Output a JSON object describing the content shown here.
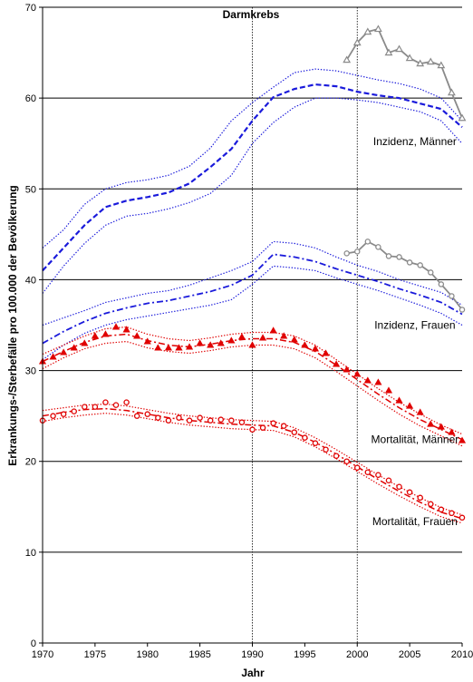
{
  "chart_data": {
    "type": "line",
    "title": "Darmkrebs",
    "xlabel": "Jahr",
    "ylabel": "Erkrankungs-/Sterbefälle pro 100.000 der Bevölkerung",
    "xlim": [
      1970,
      2010
    ],
    "ylim": [
      0,
      70
    ],
    "x_ticks": [
      1970,
      1975,
      1980,
      1985,
      1990,
      1995,
      2000,
      2005,
      2010
    ],
    "y_ticks": [
      0,
      10,
      20,
      30,
      40,
      50,
      60,
      70
    ],
    "grid": "horizontal",
    "vlines": [
      1990,
      2000
    ],
    "colors": {
      "blue": "#1a1adb",
      "red": "#e00000",
      "gray": "#8a8a8a"
    },
    "annotations": [
      {
        "text": "Inzidenz, Männer",
        "x": 2005.5,
        "y": 54.8
      },
      {
        "text": "Inzidenz, Frauen",
        "x": 2005.5,
        "y": 34.6
      },
      {
        "text": "Mortalität, Männer",
        "x": 2005.5,
        "y": 22.0
      },
      {
        "text": "Mortalität, Frauen",
        "x": 2005.5,
        "y": 13.0
      }
    ],
    "series": [
      {
        "id": "inz-m-band-upper",
        "color": "blue",
        "style": "dotted",
        "width": 1.2,
        "x": [
          1970,
          1972,
          1974,
          1976,
          1978,
          1980,
          1982,
          1984,
          1986,
          1988,
          1990,
          1992,
          1994,
          1996,
          1998,
          2000,
          2002,
          2004,
          2006,
          2008,
          2010
        ],
        "y": [
          43.5,
          45.5,
          48.3,
          50.0,
          50.7,
          51.0,
          51.5,
          52.5,
          54.5,
          57.5,
          59.5,
          61.2,
          62.8,
          63.2,
          63.0,
          62.5,
          62.0,
          61.6,
          61.0,
          60.0,
          57.5
        ]
      },
      {
        "id": "inz-m-modell",
        "color": "blue",
        "style": "dashed",
        "width": 2.2,
        "x": [
          1970,
          1972,
          1974,
          1976,
          1978,
          1980,
          1982,
          1984,
          1986,
          1988,
          1990,
          1992,
          1994,
          1996,
          1998,
          2000,
          2002,
          2004,
          2006,
          2008,
          2010
        ],
        "y": [
          41.0,
          43.5,
          46.0,
          48.0,
          48.7,
          49.1,
          49.6,
          50.6,
          52.4,
          54.4,
          57.5,
          60.1,
          61.0,
          61.5,
          61.3,
          60.7,
          60.3,
          60.0,
          59.4,
          58.8,
          56.8
        ]
      },
      {
        "id": "inz-m-band-lower",
        "color": "blue",
        "style": "dotted",
        "width": 1.2,
        "x": [
          1970,
          1972,
          1974,
          1976,
          1978,
          1980,
          1982,
          1984,
          1986,
          1988,
          1990,
          1992,
          1994,
          1996,
          1998,
          2000,
          2002,
          2004,
          2006,
          2008,
          2010
        ],
        "y": [
          38.5,
          41.5,
          44.0,
          46.0,
          47.0,
          47.3,
          47.8,
          48.5,
          49.5,
          51.5,
          55.0,
          57.3,
          59.0,
          60.0,
          60.0,
          59.8,
          59.5,
          59.0,
          58.5,
          57.5,
          55.0
        ]
      },
      {
        "id": "inz-m-beobachtet",
        "color": "gray",
        "style": "solid",
        "width": 1.8,
        "marker": "triangle-open",
        "x": [
          1999,
          2000,
          2001,
          2002,
          2003,
          2004,
          2005,
          2006,
          2007,
          2008,
          2009,
          2010
        ],
        "y": [
          64.2,
          66.1,
          67.3,
          67.6,
          65.0,
          65.4,
          64.4,
          63.8,
          64.0,
          63.6,
          60.6,
          57.8
        ]
      },
      {
        "id": "inz-f-band-upper",
        "color": "blue",
        "style": "dotted",
        "width": 1.2,
        "x": [
          1970,
          1972,
          1974,
          1976,
          1978,
          1980,
          1982,
          1984,
          1986,
          1988,
          1990,
          1992,
          1994,
          1996,
          1998,
          2000,
          2002,
          2004,
          2006,
          2008,
          2010
        ],
        "y": [
          35.0,
          35.8,
          36.6,
          37.5,
          38.0,
          38.5,
          38.8,
          39.4,
          40.2,
          41.0,
          42.0,
          44.2,
          44.0,
          43.5,
          42.5,
          41.6,
          40.9,
          40.0,
          39.3,
          38.6,
          37.2
        ]
      },
      {
        "id": "inz-f-modell",
        "color": "blue",
        "style": "dashdot",
        "width": 1.8,
        "x": [
          1970,
          1972,
          1974,
          1976,
          1978,
          1980,
          1982,
          1984,
          1986,
          1988,
          1990,
          1992,
          1994,
          1996,
          1998,
          2000,
          2002,
          2004,
          2006,
          2008,
          2010
        ],
        "y": [
          33.0,
          34.3,
          35.4,
          36.3,
          36.9,
          37.4,
          37.7,
          38.2,
          38.7,
          39.4,
          40.5,
          42.8,
          42.5,
          42.0,
          41.2,
          40.5,
          39.8,
          39.0,
          38.3,
          37.5,
          36.2
        ]
      },
      {
        "id": "inz-f-band-lower",
        "color": "blue",
        "style": "dotted",
        "width": 1.2,
        "x": [
          1970,
          1972,
          1974,
          1976,
          1978,
          1980,
          1982,
          1984,
          1986,
          1988,
          1990,
          1992,
          1994,
          1996,
          1998,
          2000,
          2002,
          2004,
          2006,
          2008,
          2010
        ],
        "y": [
          31.2,
          32.8,
          34.1,
          35.0,
          35.6,
          36.0,
          36.4,
          36.8,
          37.2,
          37.8,
          39.5,
          41.5,
          41.3,
          41.0,
          40.2,
          39.5,
          38.8,
          38.0,
          37.2,
          36.3,
          35.0
        ]
      },
      {
        "id": "inz-f-beobachtet",
        "color": "gray",
        "style": "solid",
        "width": 1.8,
        "marker": "circle-open",
        "x": [
          1999,
          2000,
          2001,
          2002,
          2003,
          2004,
          2005,
          2006,
          2007,
          2008,
          2009,
          2010
        ],
        "y": [
          42.9,
          43.1,
          44.2,
          43.6,
          42.6,
          42.5,
          41.9,
          41.6,
          40.8,
          39.5,
          38.2,
          36.7
        ]
      },
      {
        "id": "mort-m-band-upper",
        "color": "red",
        "style": "dotted",
        "width": 1.2,
        "x": [
          1970,
          1972,
          1974,
          1976,
          1978,
          1980,
          1982,
          1984,
          1986,
          1988,
          1990,
          1992,
          1994,
          1996,
          1998,
          2000,
          2002,
          2004,
          2006,
          2008,
          2010
        ],
        "y": [
          31.8,
          32.8,
          33.8,
          34.6,
          34.8,
          34.0,
          33.5,
          33.3,
          33.6,
          34.0,
          34.2,
          34.2,
          33.8,
          32.8,
          31.2,
          29.6,
          28.0,
          26.5,
          25.2,
          24.0,
          23.0
        ]
      },
      {
        "id": "mort-m-modell",
        "color": "red",
        "style": "dashdot",
        "width": 1.5,
        "x": [
          1970,
          1972,
          1974,
          1976,
          1978,
          1980,
          1982,
          1984,
          1986,
          1988,
          1990,
          1992,
          1994,
          1996,
          1998,
          2000,
          2002,
          2004,
          2006,
          2008,
          2010
        ],
        "y": [
          31.0,
          32.1,
          33.1,
          33.8,
          34.0,
          33.3,
          32.8,
          32.6,
          32.9,
          33.3,
          33.5,
          33.5,
          33.1,
          32.1,
          30.6,
          29.0,
          27.4,
          25.9,
          24.6,
          23.5,
          22.4
        ]
      },
      {
        "id": "mort-m-band-lower",
        "color": "red",
        "style": "dotted",
        "width": 1.2,
        "x": [
          1970,
          1972,
          1974,
          1976,
          1978,
          1980,
          1982,
          1984,
          1986,
          1988,
          1990,
          1992,
          1994,
          1996,
          1998,
          2000,
          2002,
          2004,
          2006,
          2008,
          2010
        ],
        "y": [
          30.2,
          31.4,
          32.4,
          33.0,
          33.2,
          32.5,
          32.1,
          31.9,
          32.2,
          32.6,
          32.8,
          32.8,
          32.4,
          31.4,
          29.9,
          28.3,
          26.7,
          25.2,
          23.9,
          22.8,
          21.7
        ]
      },
      {
        "id": "mort-m-beobachtet",
        "color": "red",
        "style": "none",
        "marker": "triangle-filled",
        "x": [
          1970,
          1971,
          1972,
          1973,
          1974,
          1975,
          1976,
          1977,
          1978,
          1979,
          1980,
          1981,
          1982,
          1983,
          1984,
          1985,
          1986,
          1987,
          1988,
          1989,
          1990,
          1991,
          1992,
          1993,
          1994,
          1995,
          1996,
          1997,
          1998,
          1999,
          2000,
          2001,
          2002,
          2003,
          2004,
          2005,
          2006,
          2007,
          2008,
          2009,
          2010
        ],
        "y": [
          31.0,
          31.5,
          32.0,
          32.5,
          33.0,
          33.8,
          34.0,
          34.8,
          34.5,
          33.8,
          33.2,
          32.5,
          32.5,
          32.5,
          32.6,
          33.0,
          32.8,
          33.0,
          33.3,
          33.7,
          32.8,
          33.6,
          34.4,
          33.8,
          33.4,
          32.8,
          32.4,
          31.9,
          30.7,
          30.1,
          29.6,
          28.9,
          28.7,
          27.8,
          26.7,
          26.1,
          25.4,
          24.1,
          23.8,
          23.2,
          22.3
        ]
      },
      {
        "id": "mort-f-band-upper",
        "color": "red",
        "style": "dotted",
        "width": 1.2,
        "x": [
          1970,
          1972,
          1974,
          1976,
          1978,
          1980,
          1982,
          1984,
          1986,
          1988,
          1990,
          1992,
          1994,
          1996,
          1998,
          2000,
          2002,
          2004,
          2006,
          2008,
          2010
        ],
        "y": [
          25.6,
          25.9,
          26.2,
          26.3,
          26.1,
          25.7,
          25.3,
          25.0,
          24.8,
          24.6,
          24.5,
          24.4,
          23.7,
          22.6,
          21.3,
          19.9,
          18.5,
          17.2,
          16.0,
          14.9,
          14.1
        ]
      },
      {
        "id": "mort-f-modell",
        "color": "red",
        "style": "dashdot",
        "width": 1.5,
        "x": [
          1970,
          1972,
          1974,
          1976,
          1978,
          1980,
          1982,
          1984,
          1986,
          1988,
          1990,
          1992,
          1994,
          1996,
          1998,
          2000,
          2002,
          2004,
          2006,
          2008,
          2010
        ],
        "y": [
          25.0,
          25.4,
          25.7,
          25.8,
          25.6,
          25.2,
          24.8,
          24.5,
          24.3,
          24.1,
          24.0,
          23.9,
          23.2,
          22.1,
          20.8,
          19.4,
          18.0,
          16.7,
          15.5,
          14.4,
          13.7
        ]
      },
      {
        "id": "mort-f-band-lower",
        "color": "red",
        "style": "dotted",
        "width": 1.2,
        "x": [
          1970,
          1972,
          1974,
          1976,
          1978,
          1980,
          1982,
          1984,
          1986,
          1988,
          1990,
          1992,
          1994,
          1996,
          1998,
          2000,
          2002,
          2004,
          2006,
          2008,
          2010
        ],
        "y": [
          24.4,
          24.8,
          25.1,
          25.3,
          25.1,
          24.7,
          24.3,
          24.0,
          23.8,
          23.6,
          23.5,
          23.4,
          22.7,
          21.6,
          20.3,
          18.9,
          17.5,
          16.2,
          15.0,
          13.9,
          13.2
        ]
      },
      {
        "id": "mort-f-beobachtet",
        "color": "red",
        "style": "none",
        "marker": "circle-open",
        "x": [
          1970,
          1971,
          1972,
          1973,
          1974,
          1975,
          1976,
          1977,
          1978,
          1979,
          1980,
          1981,
          1982,
          1983,
          1984,
          1985,
          1986,
          1987,
          1988,
          1989,
          1990,
          1991,
          1992,
          1993,
          1994,
          1995,
          1996,
          1997,
          1998,
          1999,
          2000,
          2001,
          2002,
          2003,
          2004,
          2005,
          2006,
          2007,
          2008,
          2009,
          2010
        ],
        "y": [
          24.5,
          25.0,
          25.2,
          25.5,
          26.0,
          26.0,
          26.5,
          26.2,
          26.5,
          25.0,
          25.2,
          24.8,
          24.5,
          24.8,
          24.5,
          24.8,
          24.5,
          24.6,
          24.5,
          24.3,
          23.5,
          23.7,
          24.2,
          23.9,
          23.2,
          22.6,
          22.0,
          21.3,
          20.6,
          20.0,
          19.3,
          18.8,
          18.5,
          17.9,
          17.2,
          16.6,
          16.0,
          15.3,
          14.7,
          14.3,
          13.8
        ]
      }
    ]
  }
}
